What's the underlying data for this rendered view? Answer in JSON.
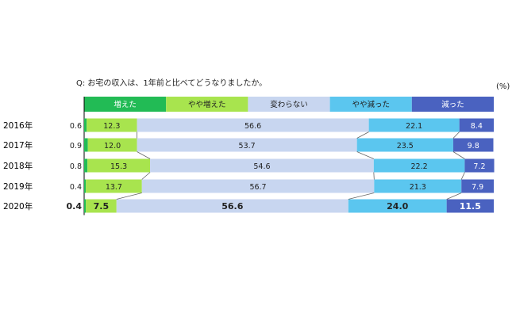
{
  "question": "Q:  お宅の収入は、1年前と比べてどうなりましたか。",
  "unit": "(%)",
  "colors": {
    "増えた": "#22bb55",
    "やや増えた": "#a8e44e",
    "変わらない": "#c8d6f0",
    "やや減った": "#5bc6ef",
    "減った": "#4a62c0"
  },
  "chart_data": {
    "type": "bar",
    "orientation": "horizontal",
    "stacked": true,
    "categories": [
      "2016年",
      "2017年",
      "2018年",
      "2019年",
      "2020年"
    ],
    "series": [
      {
        "name": "増えた",
        "values": [
          0.6,
          0.9,
          0.8,
          0.4,
          0.4
        ]
      },
      {
        "name": "やや増えた",
        "values": [
          12.3,
          12.0,
          15.3,
          13.7,
          7.5
        ]
      },
      {
        "name": "変わらない",
        "values": [
          56.6,
          53.7,
          54.6,
          56.7,
          56.6
        ]
      },
      {
        "name": "やや減った",
        "values": [
          22.1,
          23.5,
          22.2,
          21.3,
          24.0
        ]
      },
      {
        "name": "減った",
        "values": [
          8.4,
          9.8,
          7.2,
          7.9,
          11.5
        ]
      }
    ],
    "xlim": [
      0,
      100
    ],
    "legend": "top",
    "grid": false,
    "highlighted_category": "2020年"
  }
}
